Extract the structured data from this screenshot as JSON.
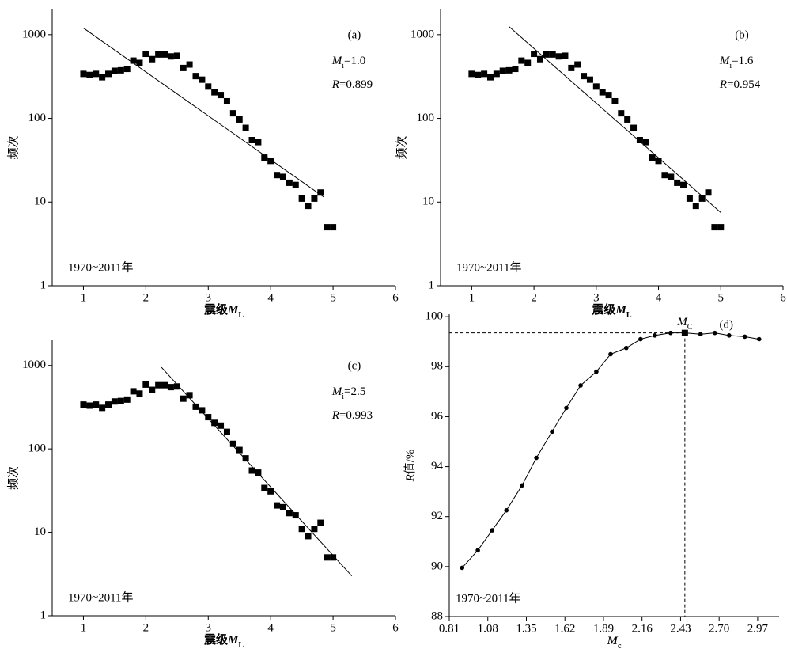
{
  "chart_data": [
    {
      "type": "scatter",
      "panel_label": "(a)",
      "annotation": "1970~2011年",
      "fit_params": [
        {
          "symbol": "M",
          "sub": "i",
          "text": "=1.0"
        },
        {
          "symbol": "R",
          "text": "=0.899"
        }
      ],
      "xlabel": {
        "text": "震级",
        "symbol": "M",
        "sub": "L"
      },
      "ylabel": "频次",
      "x": [
        1.0,
        1.1,
        1.2,
        1.3,
        1.4,
        1.5,
        1.6,
        1.7,
        1.8,
        1.9,
        2.0,
        2.1,
        2.2,
        2.3,
        2.4,
        2.5,
        2.6,
        2.7,
        2.8,
        2.9,
        3.0,
        3.1,
        3.2,
        3.3,
        3.4,
        3.5,
        3.6,
        3.7,
        3.8,
        3.9,
        4.0,
        4.1,
        4.2,
        4.3,
        4.4,
        4.5,
        4.6,
        4.7,
        4.8,
        4.9,
        5.0
      ],
      "values": [
        340,
        330,
        340,
        310,
        340,
        370,
        375,
        390,
        490,
        460,
        590,
        510,
        580,
        580,
        550,
        560,
        400,
        440,
        320,
        290,
        240,
        205,
        190,
        160,
        115,
        97,
        77,
        55,
        52,
        34,
        31,
        21,
        20,
        17,
        16,
        11,
        9,
        11,
        13,
        5,
        5
      ],
      "fit_line": {
        "x": [
          1.0,
          4.85
        ],
        "values": [
          1200,
          11.5
        ]
      },
      "xlim": [
        0.5,
        6
      ],
      "ylim": [
        1,
        2000
      ],
      "xticks": [
        1,
        2,
        3,
        4,
        5,
        6
      ],
      "yticks": [
        1,
        10,
        100,
        1000
      ],
      "yscale": "log",
      "color": "#000000"
    },
    {
      "type": "scatter",
      "panel_label": "(b)",
      "annotation": "1970~2011年",
      "fit_params": [
        {
          "symbol": "M",
          "sub": "i",
          "text": "=1.6"
        },
        {
          "symbol": "R",
          "text": "=0.954"
        }
      ],
      "xlabel": {
        "text": "震级",
        "symbol": "M",
        "sub": "L"
      },
      "ylabel": "频次",
      "x": [
        1.0,
        1.1,
        1.2,
        1.3,
        1.4,
        1.5,
        1.6,
        1.7,
        1.8,
        1.9,
        2.0,
        2.1,
        2.2,
        2.3,
        2.4,
        2.5,
        2.6,
        2.7,
        2.8,
        2.9,
        3.0,
        3.1,
        3.2,
        3.3,
        3.4,
        3.5,
        3.6,
        3.7,
        3.8,
        3.9,
        4.0,
        4.1,
        4.2,
        4.3,
        4.4,
        4.5,
        4.6,
        4.7,
        4.8,
        4.9,
        5.0
      ],
      "values": [
        340,
        330,
        340,
        310,
        340,
        370,
        375,
        390,
        490,
        460,
        590,
        510,
        580,
        580,
        550,
        560,
        400,
        440,
        320,
        290,
        240,
        205,
        190,
        160,
        115,
        97,
        77,
        55,
        52,
        34,
        31,
        21,
        20,
        17,
        16,
        11,
        9,
        11,
        13,
        5,
        5
      ],
      "fit_line": {
        "x": [
          1.6,
          5.0
        ],
        "values": [
          1250,
          7.5
        ]
      },
      "xlim": [
        0.5,
        6
      ],
      "ylim": [
        1,
        2000
      ],
      "xticks": [
        1,
        2,
        3,
        4,
        5,
        6
      ],
      "yticks": [
        1,
        10,
        100,
        1000
      ],
      "yscale": "log",
      "color": "#000000"
    },
    {
      "type": "scatter",
      "panel_label": "(c)",
      "annotation": "1970~2011年",
      "fit_params": [
        {
          "symbol": "M",
          "sub": "i",
          "text": "=2.5"
        },
        {
          "symbol": "R",
          "text": "=0.993"
        }
      ],
      "xlabel": {
        "text": "震级",
        "symbol": "M",
        "sub": "L"
      },
      "ylabel": "频次",
      "x": [
        1.0,
        1.1,
        1.2,
        1.3,
        1.4,
        1.5,
        1.6,
        1.7,
        1.8,
        1.9,
        2.0,
        2.1,
        2.2,
        2.3,
        2.4,
        2.5,
        2.6,
        2.7,
        2.8,
        2.9,
        3.0,
        3.1,
        3.2,
        3.3,
        3.4,
        3.5,
        3.6,
        3.7,
        3.8,
        3.9,
        4.0,
        4.1,
        4.2,
        4.3,
        4.4,
        4.5,
        4.6,
        4.7,
        4.8,
        4.9,
        5.0
      ],
      "values": [
        340,
        330,
        340,
        310,
        340,
        370,
        375,
        390,
        490,
        460,
        590,
        510,
        580,
        580,
        550,
        560,
        400,
        440,
        320,
        290,
        240,
        205,
        190,
        160,
        115,
        97,
        77,
        55,
        52,
        34,
        31,
        21,
        20,
        17,
        16,
        11,
        9,
        11,
        13,
        5,
        5
      ],
      "fit_line": {
        "x": [
          2.25,
          5.3
        ],
        "values": [
          950,
          3
        ]
      },
      "xlim": [
        0.5,
        6
      ],
      "ylim": [
        1,
        2000
      ],
      "xticks": [
        1,
        2,
        3,
        4,
        5,
        6
      ],
      "yticks": [
        1,
        10,
        100,
        1000
      ],
      "yscale": "log",
      "color": "#000000"
    },
    {
      "type": "line",
      "panel_label": "(d)",
      "annotation": "1970~2011年",
      "xlabel": {
        "symbol": "M",
        "sub": "c"
      },
      "ylabel": {
        "symbol": "R",
        "text": "值/%"
      },
      "x": [
        0.9,
        1.01,
        1.11,
        1.21,
        1.32,
        1.42,
        1.53,
        1.63,
        1.73,
        1.84,
        1.94,
        2.05,
        2.15,
        2.25,
        2.36,
        2.46,
        2.57,
        2.67,
        2.77,
        2.88,
        2.98
      ],
      "values": [
        89.95,
        90.65,
        91.45,
        92.25,
        93.25,
        94.35,
        95.4,
        96.35,
        97.25,
        97.8,
        98.5,
        98.75,
        99.1,
        99.25,
        99.35,
        99.35,
        99.3,
        99.35,
        99.25,
        99.2,
        99.1
      ],
      "mc_point": {
        "x": 2.46,
        "value": 99.35,
        "label": {
          "symbol": "M",
          "sub": "C"
        }
      },
      "xlim": [
        0.81,
        3.12
      ],
      "ylim": [
        88,
        100.1
      ],
      "xticks": [
        0.81,
        1.08,
        1.35,
        1.62,
        1.89,
        2.16,
        2.43,
        {
          "value": 2.7,
          "label": "2.70"
        },
        2.97
      ],
      "yticks": [
        88,
        90,
        92,
        94,
        96,
        98,
        100
      ],
      "color": "#000000"
    }
  ]
}
